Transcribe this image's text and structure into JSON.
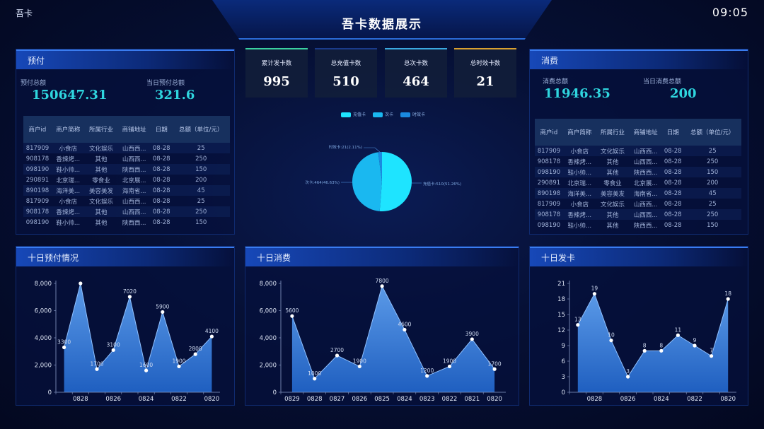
{
  "header": {
    "brand": "吾卡",
    "title": "吾卡数据展示",
    "time": "09:05"
  },
  "prepaid": {
    "title": "预付",
    "total_label": "预付总额",
    "total": "150647.31",
    "today_label": "当日预付总额",
    "today": "321.6"
  },
  "consume": {
    "title": "消费",
    "total_label": "消费总额",
    "total": "11946.35",
    "today_label": "当日消费总额",
    "today": "200"
  },
  "table": {
    "headers": [
      "商户id",
      "商户简称",
      "所属行业",
      "商铺地址",
      "日期",
      "总额（单位/元）"
    ],
    "rows": [
      [
        "817909",
        "小食店",
        "文化娱乐",
        "山西西...",
        "08-28",
        "25"
      ],
      [
        "908178",
        "香辣烤...",
        "其他",
        "山西西...",
        "08-28",
        "250"
      ],
      [
        "098190",
        "鞋小帅...",
        "其他",
        "陕西西...",
        "08-28",
        "150"
      ],
      [
        "290891",
        "北京瑞...",
        "零食业",
        "北京展...",
        "08-28",
        "200"
      ],
      [
        "890198",
        "海洋美...",
        "美容美发",
        "海南省...",
        "08-28",
        "45"
      ],
      [
        "817909",
        "小食店",
        "文化娱乐",
        "山西西...",
        "08-28",
        "25"
      ],
      [
        "908178",
        "香辣烤...",
        "其他",
        "山西西...",
        "08-28",
        "250"
      ],
      [
        "098190",
        "鞋小帅...",
        "其他",
        "陕西西...",
        "08-28",
        "150"
      ]
    ]
  },
  "cards": [
    {
      "label": "累计发卡数",
      "value": "995",
      "color": "#3ad0a0"
    },
    {
      "label": "总充值卡数",
      "value": "510",
      "color": "#1a3a8a"
    },
    {
      "label": "总次卡数",
      "value": "464",
      "color": "#3aa8e0"
    },
    {
      "label": "总时效卡数",
      "value": "21",
      "color": "#d8a030"
    }
  ],
  "chart_data": [
    {
      "type": "pie",
      "legend": [
        "充值卡",
        "次卡",
        "时效卡"
      ],
      "legend_placement": "top",
      "values": [
        510,
        464,
        21
      ],
      "colors": [
        "#1ee4ff",
        "#1ab8f0",
        "#1a8ae0"
      ],
      "labels": [
        "充值卡:510(51.26%)",
        "次卡:464(46.63%)",
        "时效卡:21(2.11%)"
      ]
    },
    {
      "type": "area",
      "title": "十日预付情况",
      "x": [
        "0829",
        "0828",
        "0827",
        "0826",
        "0825",
        "0824",
        "0823",
        "0822",
        "0821",
        "0820"
      ],
      "x_tick_labels": [
        "",
        "0828",
        "",
        "0826",
        "",
        "0824",
        "",
        "0822",
        "",
        "0820"
      ],
      "values": [
        3300,
        8000,
        1700,
        3100,
        7020,
        1600,
        5900,
        1900,
        2800,
        4100
      ],
      "data_labels": [
        "3300",
        "",
        "1700",
        "3100",
        "7020",
        "1600",
        "5900",
        "1900",
        "2800",
        "4100"
      ],
      "ylim": [
        0,
        8000
      ],
      "yticks": [
        "0",
        "2,000",
        "4,000",
        "6,000",
        "8,000"
      ]
    },
    {
      "type": "area",
      "title": "十日消费",
      "x": [
        "0829",
        "0828",
        "0827",
        "0826",
        "0825",
        "0824",
        "0823",
        "0822",
        "0821",
        "0820"
      ],
      "x_tick_labels": [
        "0829",
        "0828",
        "0827",
        "0826",
        "0825",
        "0824",
        "0823",
        "0822",
        "0821",
        "0820"
      ],
      "values": [
        5600,
        1000,
        2700,
        1900,
        7800,
        4600,
        1200,
        1900,
        3900,
        1700
      ],
      "data_labels": [
        "5600",
        "1000",
        "2700",
        "1900",
        "7800",
        "4600",
        "1200",
        "1900",
        "3900",
        "1700"
      ],
      "ylim": [
        0,
        8000
      ],
      "yticks": [
        "0",
        "2,000",
        "4,000",
        "6,000",
        "8,000"
      ]
    },
    {
      "type": "area",
      "title": "十日发卡",
      "x": [
        "0829",
        "0828",
        "0827",
        "0826",
        "0825",
        "0824",
        "0823",
        "0822",
        "0821",
        "0820"
      ],
      "x_tick_labels": [
        "",
        "0828",
        "",
        "0826",
        "",
        "0824",
        "",
        "0822",
        "",
        "0820"
      ],
      "values": [
        13,
        19,
        10,
        3,
        8,
        8,
        11,
        9,
        7,
        18
      ],
      "data_labels": [
        "13",
        "19",
        "10",
        "3",
        "8",
        "8",
        "11",
        "9",
        "7",
        "18"
      ],
      "ylim": [
        0,
        21
      ],
      "yticks": [
        "0",
        "3",
        "6",
        "9",
        "12",
        "15",
        "18",
        "21"
      ]
    }
  ]
}
